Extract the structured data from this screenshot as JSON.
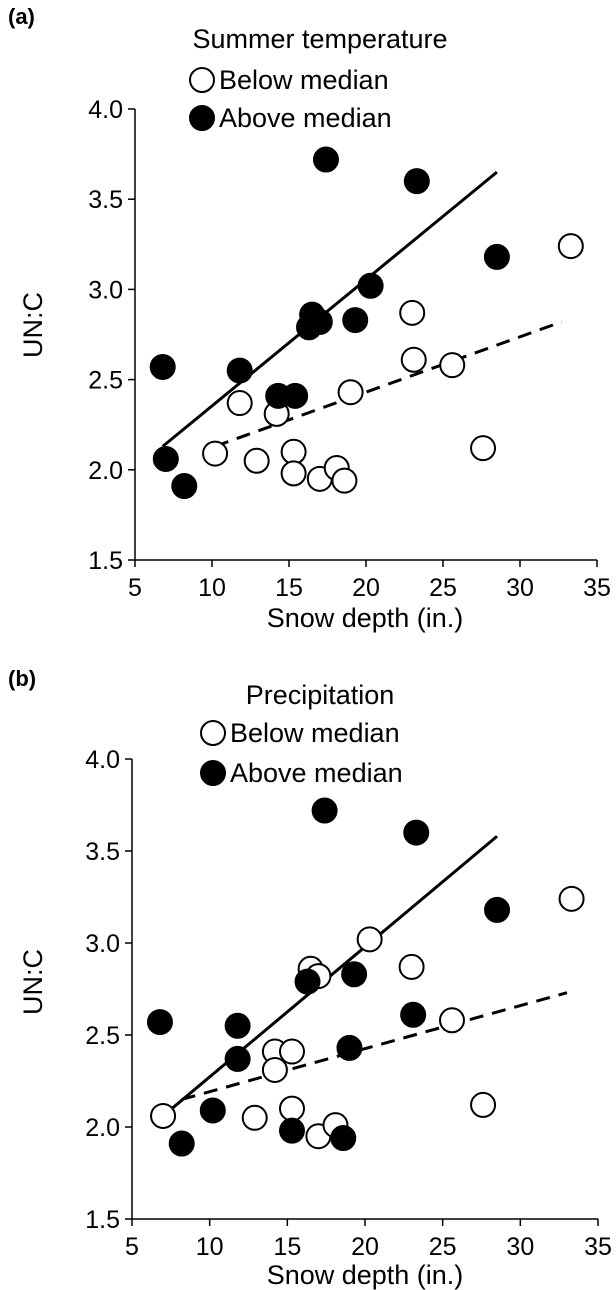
{
  "chart_data": [
    {
      "type": "scatter",
      "panel_label": "(a)",
      "title": "Summer temperature",
      "xlabel": "Snow depth (in.)",
      "ylabel": "UN:C",
      "xlim": [
        5,
        35
      ],
      "ylim": [
        1.5,
        4.0
      ],
      "xticks": [
        "5",
        "10",
        "15",
        "20",
        "25",
        "30",
        "35"
      ],
      "yticks": [
        "1.5",
        "2.0",
        "2.5",
        "3.0",
        "3.5",
        "4.0"
      ],
      "grid": false,
      "legend": "top",
      "series": [
        {
          "name": "Below median",
          "marker": "open-circle",
          "points": [
            [
              10.2,
              2.09
            ],
            [
              11.8,
              2.37
            ],
            [
              12.9,
              2.05
            ],
            [
              14.2,
              2.31
            ],
            [
              15.3,
              2.1
            ],
            [
              15.3,
              1.98
            ],
            [
              17.0,
              1.95
            ],
            [
              18.1,
              2.01
            ],
            [
              18.6,
              1.94
            ],
            [
              19.0,
              2.43
            ],
            [
              23.0,
              2.87
            ],
            [
              23.1,
              2.61
            ],
            [
              25.6,
              2.58
            ],
            [
              27.6,
              2.12
            ],
            [
              33.3,
              3.24
            ]
          ],
          "fit": {
            "style": "dashed",
            "x": [
              10.2,
              32.7
            ],
            "y": [
              2.13,
              2.82
            ]
          }
        },
        {
          "name": "Above median",
          "marker": "filled-circle",
          "points": [
            [
              6.8,
              2.57
            ],
            [
              7.0,
              2.06
            ],
            [
              8.2,
              1.91
            ],
            [
              11.8,
              2.55
            ],
            [
              14.3,
              2.41
            ],
            [
              15.4,
              2.41
            ],
            [
              16.3,
              2.79
            ],
            [
              16.5,
              2.86
            ],
            [
              17.0,
              2.82
            ],
            [
              17.4,
              3.72
            ],
            [
              19.3,
              2.83
            ],
            [
              20.3,
              3.02
            ],
            [
              23.3,
              3.6
            ],
            [
              28.5,
              3.18
            ]
          ],
          "fit": {
            "style": "solid",
            "x": [
              6.8,
              28.5
            ],
            "y": [
              2.13,
              3.65
            ]
          }
        }
      ]
    },
    {
      "type": "scatter",
      "panel_label": "(b)",
      "title": "Precipitation",
      "xlabel": "Snow depth (in.)",
      "ylabel": "UN:C",
      "xlim": [
        5,
        35
      ],
      "ylim": [
        1.5,
        4.0
      ],
      "xticks": [
        "5",
        "10",
        "15",
        "20",
        "25",
        "30",
        "35"
      ],
      "yticks": [
        "1.5",
        "2.0",
        "2.5",
        "3.0",
        "3.5",
        "4.0"
      ],
      "grid": false,
      "legend": "top",
      "series": [
        {
          "name": "Below median",
          "marker": "open-circle",
          "points": [
            [
              7.0,
              2.06
            ],
            [
              12.9,
              2.05
            ],
            [
              14.2,
              2.41
            ],
            [
              14.2,
              2.31
            ],
            [
              15.3,
              2.41
            ],
            [
              15.3,
              2.1
            ],
            [
              16.5,
              2.86
            ],
            [
              17.0,
              1.95
            ],
            [
              17.0,
              2.82
            ],
            [
              18.1,
              2.01
            ],
            [
              20.3,
              3.02
            ],
            [
              23.0,
              2.87
            ],
            [
              25.6,
              2.58
            ],
            [
              27.6,
              2.12
            ],
            [
              33.3,
              3.24
            ]
          ],
          "fit": {
            "style": "dashed",
            "x": [
              8.2,
              33.0
            ],
            "y": [
              2.15,
              2.73
            ]
          }
        },
        {
          "name": "Above median",
          "marker": "filled-circle",
          "points": [
            [
              6.8,
              2.57
            ],
            [
              8.2,
              1.91
            ],
            [
              10.2,
              2.09
            ],
            [
              11.8,
              2.55
            ],
            [
              11.8,
              2.37
            ],
            [
              15.3,
              1.98
            ],
            [
              16.3,
              2.79
            ],
            [
              17.4,
              3.72
            ],
            [
              18.6,
              1.94
            ],
            [
              19.0,
              2.43
            ],
            [
              19.3,
              2.83
            ],
            [
              23.1,
              2.61
            ],
            [
              23.3,
              3.6
            ],
            [
              28.5,
              3.18
            ]
          ],
          "fit": {
            "style": "solid",
            "x": [
              7.0,
              28.5
            ],
            "y": [
              2.06,
              3.58
            ]
          }
        }
      ]
    }
  ]
}
